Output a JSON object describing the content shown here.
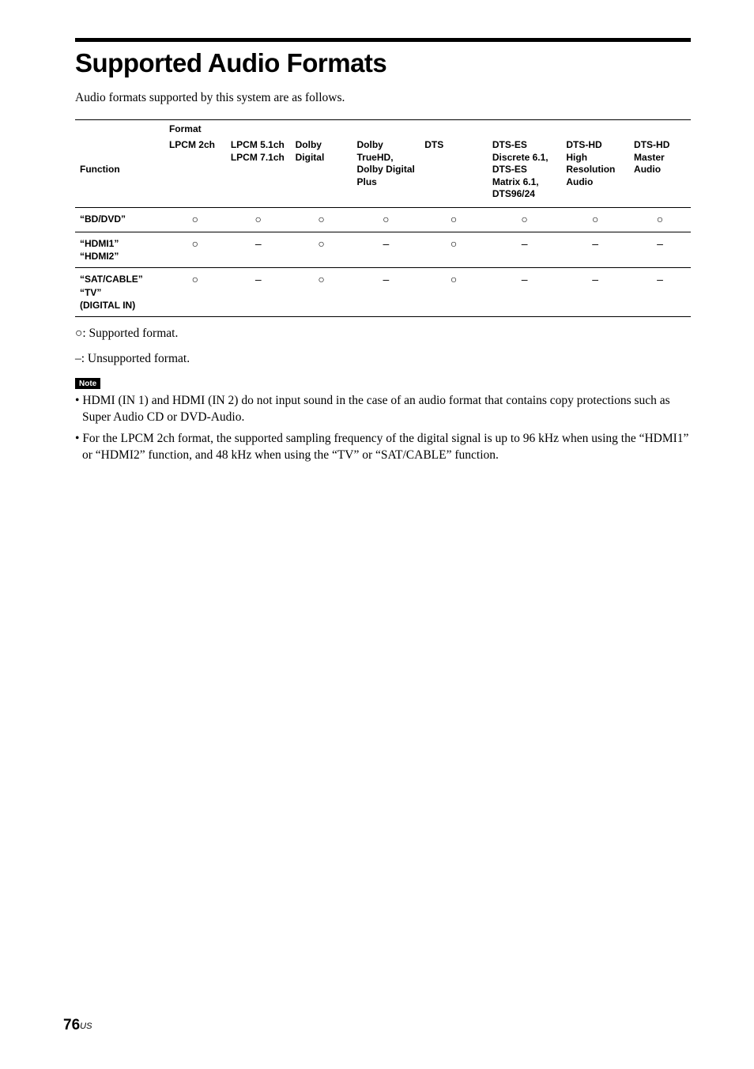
{
  "title": "Supported Audio Formats",
  "intro": "Audio formats supported by this system are as follows.",
  "table": {
    "format_label": "Format",
    "function_label": "Function",
    "columns": [
      "LPCM 2ch",
      "LPCM 5.1ch\nLPCM 7.1ch",
      "Dolby Digital",
      "Dolby\nTrueHD,\nDolby Digital\nPlus",
      "DTS",
      "DTS-ES\nDiscrete 6.1,\nDTS-ES\nMatrix 6.1,\nDTS96/24",
      "DTS-HD\nHigh\nResolution\nAudio",
      "DTS-HD\nMaster\nAudio"
    ],
    "rows": [
      {
        "func": "“BD/DVD”",
        "cells": [
          "a",
          "a",
          "a",
          "a",
          "a",
          "a",
          "a",
          "a"
        ]
      },
      {
        "func": "“HDMI1”\n“HDMI2”",
        "cells": [
          "a",
          "–",
          "a",
          "–",
          "a",
          "–",
          "–",
          "–"
        ]
      },
      {
        "func": "“SAT/CABLE”\n“TV”\n(DIGITAL IN)",
        "cells": [
          "a",
          "–",
          "a",
          "–",
          "a",
          "–",
          "–",
          "–"
        ]
      }
    ]
  },
  "legend_supported": "a: Supported format.",
  "legend_unsupported": "–: Unsupported format.",
  "note_label": "Note",
  "notes": [
    "HDMI (IN 1) and HDMI (IN 2) do not input sound in the case of an audio format that contains copy protections such as Super Audio CD or DVD-Audio.",
    "For the LPCM 2ch format, the supported sampling frequency of the digital signal is up to 96 kHz when using the “HDMI1” or “HDMI2” function, and 48 kHz when using the “TV” or “SAT/CABLE” function."
  ],
  "page_number": "76",
  "region": "US",
  "glyph_circle": "○"
}
